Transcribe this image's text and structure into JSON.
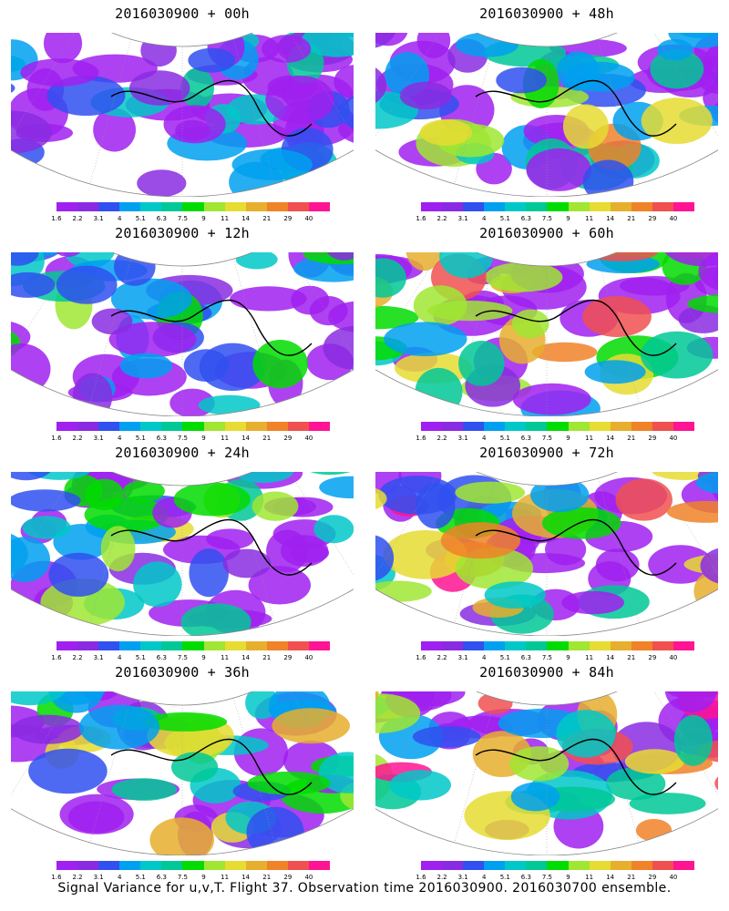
{
  "panels": [
    {
      "title": "2016030900 + 00h",
      "level": 0.15
    },
    {
      "title": "2016030900 + 48h",
      "level": 0.55
    },
    {
      "title": "2016030900 + 12h",
      "level": 0.3
    },
    {
      "title": "2016030900 + 60h",
      "level": 0.62
    },
    {
      "title": "2016030900 + 24h",
      "level": 0.4
    },
    {
      "title": "2016030900 + 72h",
      "level": 0.7
    },
    {
      "title": "2016030900 + 36h",
      "level": 0.47
    },
    {
      "title": "2016030900 + 84h",
      "level": 0.78
    }
  ],
  "colorbar": {
    "colors": [
      "#a020f0",
      "#8a2be2",
      "#3050f0",
      "#00a0f0",
      "#00c8c8",
      "#00c896",
      "#00dc00",
      "#a0e632",
      "#e6dc32",
      "#e6af2d",
      "#f08228",
      "#f05050",
      "#ff1493"
    ],
    "labels": [
      "1.6",
      "2.2",
      "3.1",
      "4",
      "5.1",
      "6.3",
      "7.5",
      "9",
      "11",
      "14",
      "21",
      "29",
      "40"
    ]
  },
  "caption": "Signal Variance for u,v,T. Flight 37. Observation time 2016030900. 2016030700 ensemble."
}
